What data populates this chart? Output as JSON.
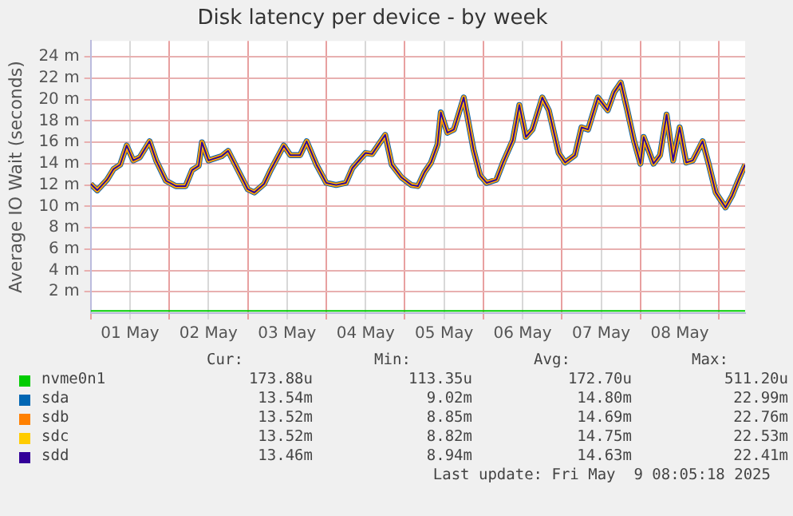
{
  "chart_data": {
    "type": "line",
    "title": "Disk latency per device - by week",
    "ylabel": "Average IO Wait (seconds)",
    "x": [
      "2025-05-01T00:00",
      "2025-05-01T02:00",
      "2025-05-01T05:00",
      "2025-05-01T07:00",
      "2025-05-01T09:00",
      "2025-05-01T11:00",
      "2025-05-01T13:00",
      "2025-05-01T15:00",
      "2025-05-01T18:00",
      "2025-05-01T20:00",
      "2025-05-01T23:00",
      "2025-05-02T02:00",
      "2025-05-02T05:00",
      "2025-05-02T07:00",
      "2025-05-02T09:00",
      "2025-05-02T10:00",
      "2025-05-02T12:00",
      "2025-05-02T16:00",
      "2025-05-02T18:00",
      "2025-05-02T21:00",
      "2025-05-03T00:00",
      "2025-05-03T02:00",
      "2025-05-03T05:00",
      "2025-05-03T07:00",
      "2025-05-03T11:00",
      "2025-05-03T13:00",
      "2025-05-03T16:00",
      "2025-05-03T18:00",
      "2025-05-03T21:00",
      "2025-05-04T00:00",
      "2025-05-04T03:00",
      "2025-05-04T06:00",
      "2025-05-04T08:00",
      "2025-05-04T12:00",
      "2025-05-04T14:00",
      "2025-05-04T18:00",
      "2025-05-04T20:00",
      "2025-05-04T23:00",
      "2025-05-05T02:00",
      "2025-05-05T04:00",
      "2025-05-05T06:00",
      "2025-05-05T08:00",
      "2025-05-05T10:00",
      "2025-05-05T11:00",
      "2025-05-05T13:00",
      "2025-05-05T15:00",
      "2025-05-05T18:00",
      "2025-05-05T19:00",
      "2025-05-05T21:00",
      "2025-05-05T23:00",
      "2025-05-06T01:00",
      "2025-05-06T04:00",
      "2025-05-06T06:00",
      "2025-05-06T09:00",
      "2025-05-06T11:00",
      "2025-05-06T13:00",
      "2025-05-06T15:00",
      "2025-05-06T18:00",
      "2025-05-06T20:00",
      "2025-05-06T23:00",
      "2025-05-07T01:00",
      "2025-05-07T04:00",
      "2025-05-07T06:00",
      "2025-05-07T08:00",
      "2025-05-07T11:00",
      "2025-05-07T14:00",
      "2025-05-07T16:00",
      "2025-05-07T18:00",
      "2025-05-07T20:00",
      "2025-05-07T22:00",
      "2025-05-08T00:00",
      "2025-05-08T01:00",
      "2025-05-08T04:00",
      "2025-05-08T06:00",
      "2025-05-08T08:00",
      "2025-05-08T10:00",
      "2025-05-08T12:00",
      "2025-05-08T14:00",
      "2025-05-08T16:00",
      "2025-05-08T19:00",
      "2025-05-08T21:00",
      "2025-05-08T23:00",
      "2025-05-09T02:00",
      "2025-05-09T04:00",
      "2025-05-09T06:00",
      "2025-05-09T08:00"
    ],
    "series": [
      {
        "name": "nvme0n1",
        "color": "#00cc00",
        "values": [
          0.2,
          0.2,
          0.2,
          0.2,
          0.2,
          0.2,
          0.2,
          0.2,
          0.2,
          0.2,
          0.2,
          0.2,
          0.2,
          0.2,
          0.2,
          0.2,
          0.2,
          0.2,
          0.2,
          0.2,
          0.2,
          0.2,
          0.2,
          0.2,
          0.2,
          0.2,
          0.2,
          0.2,
          0.2,
          0.2,
          0.2,
          0.2,
          0.2,
          0.2,
          0.2,
          0.2,
          0.2,
          0.2,
          0.2,
          0.2,
          0.2,
          0.2,
          0.2,
          0.2,
          0.2,
          0.2,
          0.2,
          0.2,
          0.2,
          0.2,
          0.2,
          0.2,
          0.2,
          0.2,
          0.2,
          0.2,
          0.2,
          0.2,
          0.2,
          0.2,
          0.2,
          0.2,
          0.2,
          0.2,
          0.2,
          0.2,
          0.2,
          0.2,
          0.2,
          0.2,
          0.2,
          0.2,
          0.2,
          0.2,
          0.2,
          0.2,
          0.2,
          0.2,
          0.2,
          0.2,
          0.2,
          0.2,
          0.2,
          0.2,
          0.2,
          0.2
        ]
      },
      {
        "name": "sda",
        "color": "#0066b3",
        "values": [
          12.1,
          11.5,
          12.5,
          13.5,
          13.9,
          15.7,
          14.3,
          14.6,
          16.1,
          14.3,
          12.4,
          11.9,
          11.9,
          13.4,
          13.8,
          16,
          14.3,
          14.7,
          15.2,
          13.4,
          11.6,
          11.3,
          12.1,
          13.4,
          15.7,
          14.8,
          14.8,
          16.1,
          13.9,
          12.2,
          12,
          12.2,
          13.6,
          15,
          14.9,
          16.7,
          13.9,
          12.7,
          12,
          11.9,
          13.2,
          14.1,
          15.8,
          18.8,
          16.9,
          17.2,
          20.2,
          18.6,
          15.3,
          12.9,
          12.2,
          12.5,
          14.1,
          16.2,
          19.5,
          16.5,
          17.2,
          20.2,
          19,
          15,
          14.1,
          14.8,
          17.4,
          17.2,
          20.2,
          19,
          20.7,
          21.6,
          19,
          16.2,
          14,
          16.5,
          14,
          14.8,
          18.6,
          14.3,
          17.4,
          14.1,
          14.3,
          16.1,
          13.8,
          11.3,
          9.9,
          11,
          12.5,
          13.9
        ]
      },
      {
        "name": "sdb",
        "color": "#ff8000",
        "values": [
          12.1,
          11.5,
          12.5,
          13.5,
          13.9,
          15.7,
          14.3,
          14.6,
          16.1,
          14.3,
          12.4,
          11.9,
          11.9,
          13.4,
          13.8,
          16,
          14.3,
          14.7,
          15.2,
          13.4,
          11.6,
          11.3,
          12.1,
          13.4,
          15.7,
          14.8,
          14.8,
          16.1,
          13.9,
          12.2,
          12,
          12.2,
          13.6,
          15,
          14.9,
          16.7,
          13.9,
          12.7,
          12,
          11.9,
          13.2,
          14.1,
          15.8,
          18.8,
          16.9,
          17.2,
          20.2,
          18.6,
          15.3,
          12.9,
          12.2,
          12.5,
          14.1,
          16.2,
          19.5,
          16.5,
          17.2,
          20.2,
          19,
          15,
          14.1,
          14.8,
          17.4,
          17.2,
          20.2,
          19,
          20.7,
          21.6,
          19,
          16.2,
          14,
          16.5,
          14,
          14.8,
          18.6,
          14.3,
          17.4,
          14.1,
          14.3,
          16.1,
          13.8,
          11.3,
          9.9,
          11,
          12.5,
          13.9
        ]
      },
      {
        "name": "sdc",
        "color": "#ffcc00",
        "values": [
          12.1,
          11.5,
          12.5,
          13.5,
          13.9,
          15.7,
          14.3,
          14.6,
          16.1,
          14.3,
          12.4,
          11.9,
          11.9,
          13.4,
          13.8,
          16,
          14.3,
          14.7,
          15.2,
          13.4,
          11.6,
          11.3,
          12.1,
          13.4,
          15.7,
          14.8,
          14.8,
          16.1,
          13.9,
          12.2,
          12,
          12.2,
          13.6,
          15,
          14.9,
          16.7,
          13.9,
          12.7,
          12,
          11.9,
          13.2,
          14.1,
          15.8,
          18.8,
          16.9,
          17.2,
          20.2,
          18.6,
          15.3,
          12.9,
          12.2,
          12.5,
          14.1,
          16.2,
          19.5,
          16.5,
          17.2,
          20.2,
          19,
          15,
          14.1,
          14.8,
          17.4,
          17.2,
          20.2,
          19,
          20.7,
          21.6,
          19,
          16.2,
          14,
          16.5,
          14,
          14.8,
          18.6,
          14.3,
          17.4,
          14.1,
          14.3,
          16.1,
          13.8,
          11.3,
          9.9,
          11,
          12.5,
          13.9
        ]
      },
      {
        "name": "sdd",
        "color": "#330099",
        "values": [
          12.1,
          11.5,
          12.5,
          13.5,
          13.9,
          15.7,
          14.3,
          14.6,
          16.1,
          14.3,
          12.4,
          11.9,
          11.9,
          13.4,
          13.8,
          16,
          14.3,
          14.7,
          15.2,
          13.4,
          11.6,
          11.3,
          12.1,
          13.4,
          15.7,
          14.8,
          14.8,
          16.1,
          13.9,
          12.2,
          12,
          12.2,
          13.6,
          15,
          14.9,
          16.7,
          13.9,
          12.7,
          12,
          11.9,
          13.2,
          14.1,
          15.8,
          18.8,
          16.9,
          17.2,
          20.2,
          18.6,
          15.3,
          12.9,
          12.2,
          12.5,
          14.1,
          16.2,
          19.5,
          16.5,
          17.2,
          20.2,
          19,
          15,
          14.1,
          14.8,
          17.4,
          17.2,
          20.2,
          19,
          20.7,
          21.6,
          19,
          16.2,
          14,
          16.5,
          14,
          14.8,
          18.6,
          14.3,
          17.4,
          14.1,
          14.3,
          16.1,
          13.8,
          11.3,
          9.9,
          11,
          12.5,
          13.9
        ]
      }
    ],
    "xlim": [
      "2025-05-01T00:00",
      "2025-05-09T08:00"
    ],
    "xticks": [
      {
        "value": "2025-05-01T00:00",
        "label": null
      },
      {
        "value": "2025-05-01T12:00",
        "label": "01 May"
      },
      {
        "value": "2025-05-02T00:00",
        "label": null
      },
      {
        "value": "2025-05-02T12:00",
        "label": "02 May"
      },
      {
        "value": "2025-05-03T00:00",
        "label": null
      },
      {
        "value": "2025-05-03T12:00",
        "label": "03 May"
      },
      {
        "value": "2025-05-04T00:00",
        "label": null
      },
      {
        "value": "2025-05-04T12:00",
        "label": "04 May"
      },
      {
        "value": "2025-05-05T00:00",
        "label": null
      },
      {
        "value": "2025-05-05T12:00",
        "label": "05 May"
      },
      {
        "value": "2025-05-06T00:00",
        "label": null
      },
      {
        "value": "2025-05-06T12:00",
        "label": "06 May"
      },
      {
        "value": "2025-05-07T00:00",
        "label": null
      },
      {
        "value": "2025-05-07T12:00",
        "label": "07 May"
      },
      {
        "value": "2025-05-08T00:00",
        "label": null
      },
      {
        "value": "2025-05-08T12:00",
        "label": "08 May"
      },
      {
        "value": "2025-05-09T00:00",
        "label": null
      }
    ],
    "ylim": [
      0,
      25.5
    ],
    "yticks": [
      {
        "value": 2,
        "label": "2 m"
      },
      {
        "value": 4,
        "label": "4 m"
      },
      {
        "value": 6,
        "label": "6 m"
      },
      {
        "value": 8,
        "label": "8 m"
      },
      {
        "value": 10,
        "label": "10 m"
      },
      {
        "value": 12,
        "label": "12 m"
      },
      {
        "value": 14,
        "label": "14 m"
      },
      {
        "value": 16,
        "label": "16 m"
      },
      {
        "value": 18,
        "label": "18 m"
      },
      {
        "value": 20,
        "label": "20 m"
      },
      {
        "value": 22,
        "label": "22 m"
      },
      {
        "value": 24,
        "label": "24 m"
      }
    ],
    "grid": true,
    "legend": "bottom",
    "marker": "none",
    "line_style": "solid",
    "annotations": [
      "Cur:",
      "Min:",
      "Avg:",
      "Max:",
      "173.88u",
      "113.35u",
      "172.70u",
      "511.20u",
      "13.54m",
      "9.02m",
      "14.80m",
      "22.99m",
      "13.52m",
      "8.85m",
      "14.69m",
      "22.76m",
      "13.52m",
      "8.82m",
      "14.75m",
      "22.53m",
      "13.46m",
      "8.94m",
      "14.63m",
      "22.41m",
      "Last update: Fri May  9 08:05:18 2025"
    ]
  }
}
